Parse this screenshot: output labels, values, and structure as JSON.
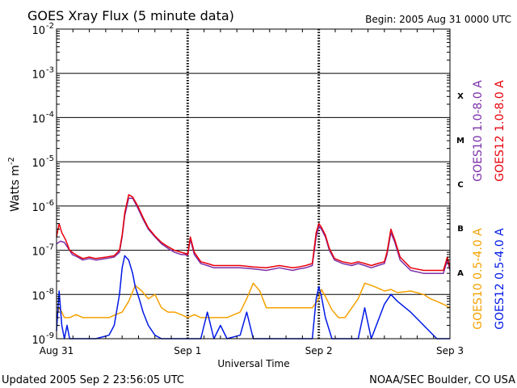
{
  "chart_data": {
    "type": "line",
    "title": "GOES Xray Flux (5 minute data)",
    "begin_label": "Begin:  2005 Aug 31 0000 UTC",
    "xlabel": "Universal Time",
    "ylabel": "Watts m",
    "ylabel_sup": "-2",
    "x_unit": "days since 2005 Aug 31 0000 UTC",
    "xlim": [
      0,
      3
    ],
    "x_ticks": [
      {
        "x": 0,
        "label": "Aug 31"
      },
      {
        "x": 1,
        "label": "Sep 1"
      },
      {
        "x": 2,
        "label": "Sep 2"
      },
      {
        "x": 3,
        "label": "Sep 3"
      }
    ],
    "y_scale": "log",
    "ylim": [
      1e-09,
      0.01
    ],
    "y_ticks": [
      {
        "exp": -9,
        "label": "10",
        "sup": "-9"
      },
      {
        "exp": -8,
        "label": "10",
        "sup": "-8"
      },
      {
        "exp": -7,
        "label": "10",
        "sup": "-7"
      },
      {
        "exp": -6,
        "label": "10",
        "sup": "-6"
      },
      {
        "exp": -5,
        "label": "10",
        "sup": "-5"
      },
      {
        "exp": -4,
        "label": "10",
        "sup": "-4"
      },
      {
        "exp": -3,
        "label": "10",
        "sup": "-3"
      },
      {
        "exp": -2,
        "label": "10",
        "sup": "-2"
      }
    ],
    "grid": true,
    "flare_classes": [
      {
        "label": "A",
        "exp": -7.5
      },
      {
        "label": "B",
        "exp": -6.5
      },
      {
        "label": "C",
        "exp": -5.5
      },
      {
        "label": "M",
        "exp": -4.5
      },
      {
        "label": "X",
        "exp": -3.5
      }
    ],
    "series": [
      {
        "name": "GOES10 1.0-8.0 A",
        "color": "#7b2fa8",
        "x": [
          0,
          0.03,
          0.06,
          0.09,
          0.12,
          0.16,
          0.2,
          0.25,
          0.3,
          0.38,
          0.44,
          0.48,
          0.5,
          0.52,
          0.55,
          0.58,
          0.62,
          0.66,
          0.7,
          0.75,
          0.8,
          0.85,
          0.9,
          0.95,
          0.98,
          1.0,
          1.02,
          1.05,
          1.1,
          1.15,
          1.2,
          1.3,
          1.4,
          1.5,
          1.6,
          1.7,
          1.8,
          1.85,
          1.9,
          1.95,
          1.98,
          2.0,
          2.02,
          2.05,
          2.08,
          2.12,
          2.18,
          2.25,
          2.3,
          2.35,
          2.4,
          2.45,
          2.5,
          2.52,
          2.55,
          2.58,
          2.62,
          2.7,
          2.8,
          2.9,
          2.95,
          2.98,
          3.0
        ],
        "y": [
          1.4e-07,
          1.6e-07,
          1.5e-07,
          1.1e-07,
          8e-08,
          7e-08,
          6e-08,
          6.5e-08,
          6e-08,
          6.5e-08,
          7e-08,
          9e-08,
          2e-07,
          6e-07,
          1.5e-06,
          1.5e-06,
          9e-07,
          5e-07,
          3e-07,
          2e-07,
          1.4e-07,
          1.1e-07,
          9e-08,
          8e-08,
          8e-08,
          7.5e-08,
          1.8e-07,
          8e-08,
          5e-08,
          4.5e-08,
          4e-08,
          4e-08,
          4e-08,
          3.8e-08,
          3.5e-08,
          4e-08,
          3.5e-08,
          3.8e-08,
          4e-08,
          4.5e-08,
          2e-07,
          3.5e-07,
          3e-07,
          2e-07,
          1e-07,
          6e-08,
          5e-08,
          4.5e-08,
          5e-08,
          4.5e-08,
          4e-08,
          4.5e-08,
          5e-08,
          8e-08,
          2.5e-07,
          1.5e-07,
          6e-08,
          3.5e-08,
          3e-08,
          3e-08,
          3e-08,
          6e-08,
          3.5e-08
        ]
      },
      {
        "name": "GOES12 1.0-8.0 A",
        "color": "#e8000b",
        "x": [
          0,
          0.02,
          0.04,
          0.07,
          0.1,
          0.13,
          0.16,
          0.2,
          0.25,
          0.3,
          0.38,
          0.44,
          0.48,
          0.5,
          0.52,
          0.55,
          0.58,
          0.62,
          0.66,
          0.7,
          0.75,
          0.8,
          0.85,
          0.9,
          0.95,
          0.98,
          1.0,
          1.02,
          1.05,
          1.1,
          1.15,
          1.2,
          1.3,
          1.4,
          1.5,
          1.6,
          1.7,
          1.8,
          1.85,
          1.9,
          1.95,
          1.98,
          2.0,
          2.02,
          2.05,
          2.08,
          2.12,
          2.18,
          2.25,
          2.3,
          2.35,
          2.4,
          2.45,
          2.5,
          2.52,
          2.55,
          2.58,
          2.62,
          2.7,
          2.8,
          2.9,
          2.95,
          2.98,
          3.0
        ],
        "y": [
          2e-07,
          4e-07,
          2.5e-07,
          1.7e-07,
          1e-07,
          8.5e-08,
          7.5e-08,
          6.5e-08,
          7e-08,
          6.5e-08,
          7e-08,
          7.5e-08,
          1e-07,
          2.2e-07,
          7e-07,
          1.8e-06,
          1.6e-06,
          1e-06,
          5.5e-07,
          3.2e-07,
          2.1e-07,
          1.5e-07,
          1.2e-07,
          1e-07,
          9e-08,
          8.5e-08,
          8e-08,
          2e-07,
          9e-08,
          5.5e-08,
          5e-08,
          4.5e-08,
          4.5e-08,
          4.5e-08,
          4.2e-08,
          4e-08,
          4.5e-08,
          4e-08,
          4.2e-08,
          4.5e-08,
          5e-08,
          2.5e-07,
          4e-07,
          3.3e-07,
          2.2e-07,
          1.1e-07,
          6.5e-08,
          5.5e-08,
          5e-08,
          5.5e-08,
          5e-08,
          4.5e-08,
          5e-08,
          5.5e-08,
          9e-08,
          3e-07,
          1.7e-07,
          7e-08,
          4e-08,
          3.5e-08,
          3.5e-08,
          3.5e-08,
          7e-08,
          4e-08
        ]
      },
      {
        "name": "GOES10 0.5-4.0 A",
        "color": "#f4a100",
        "x": [
          0,
          0.02,
          0.04,
          0.06,
          0.1,
          0.15,
          0.2,
          0.25,
          0.3,
          0.4,
          0.45,
          0.5,
          0.55,
          0.6,
          0.65,
          0.7,
          0.75,
          0.8,
          0.85,
          0.9,
          0.95,
          1.0,
          1.05,
          1.1,
          1.2,
          1.3,
          1.4,
          1.45,
          1.5,
          1.55,
          1.6,
          1.7,
          1.8,
          1.9,
          1.95,
          2.0,
          2.02,
          2.05,
          2.1,
          2.15,
          2.2,
          2.3,
          2.35,
          2.4,
          2.45,
          2.5,
          2.55,
          2.6,
          2.7,
          2.8,
          2.85,
          2.9,
          2.95,
          3.0
        ],
        "y": [
          3e-09,
          5e-09,
          4e-09,
          3e-09,
          3e-09,
          3.5e-09,
          3e-09,
          3e-09,
          3e-09,
          3e-09,
          3.5e-09,
          4e-09,
          7e-09,
          1.6e-08,
          1.2e-08,
          8e-09,
          1e-08,
          5e-09,
          4e-09,
          4e-09,
          3.5e-09,
          3e-09,
          3.5e-09,
          3e-09,
          3e-09,
          3e-09,
          4e-09,
          8e-09,
          1.8e-08,
          1.2e-08,
          5e-09,
          5e-09,
          5e-09,
          5e-09,
          5e-09,
          8e-09,
          1.3e-08,
          9e-09,
          4.5e-09,
          3e-09,
          3e-09,
          8e-09,
          1.8e-08,
          1.6e-08,
          1.4e-08,
          1.2e-08,
          1.3e-08,
          1.1e-08,
          1.2e-08,
          1e-08,
          8e-09,
          7e-09,
          6e-09,
          5e-09
        ]
      },
      {
        "name": "GOES12 0.5-4.0 A",
        "color": "#0019e6",
        "x": [
          0,
          0.02,
          0.04,
          0.06,
          0.08,
          0.1,
          0.15,
          0.2,
          0.25,
          0.3,
          0.4,
          0.44,
          0.48,
          0.5,
          0.52,
          0.55,
          0.58,
          0.6,
          0.63,
          0.66,
          0.7,
          0.75,
          0.8,
          0.9,
          1.0,
          1.05,
          1.1,
          1.15,
          1.2,
          1.25,
          1.3,
          1.4,
          1.45,
          1.5,
          1.55,
          1.6,
          1.7,
          1.8,
          1.9,
          1.95,
          1.98,
          2.0,
          2.02,
          2.05,
          2.1,
          2.2,
          2.3,
          2.35,
          2.4,
          2.5,
          2.55,
          2.6,
          2.7,
          2.8,
          2.9,
          2.95,
          3.0
        ],
        "y": [
          1.5e-09,
          1.2e-08,
          2e-09,
          1e-09,
          2e-09,
          1e-09,
          1e-09,
          1e-09,
          1e-09,
          1e-09,
          1.2e-09,
          2e-09,
          1e-08,
          4e-08,
          7.5e-08,
          6e-08,
          3e-08,
          1.5e-08,
          8e-09,
          4e-09,
          2e-09,
          1.2e-09,
          1e-09,
          1e-09,
          1e-09,
          1e-09,
          1e-09,
          4e-09,
          1e-09,
          2e-09,
          1e-09,
          1.2e-09,
          4e-09,
          1e-09,
          1e-09,
          1e-09,
          1e-09,
          1e-09,
          1e-09,
          1e-09,
          8e-09,
          1.5e-08,
          9e-09,
          3e-09,
          1e-09,
          1e-09,
          1e-09,
          5e-09,
          1e-09,
          6e-09,
          1e-08,
          7e-09,
          4e-09,
          2e-09,
          1e-09,
          1e-09,
          1e-09
        ]
      }
    ]
  },
  "footer": {
    "updated": "Updated 2005 Sep  2 23:56:05 UTC",
    "credit": "NOAA/SEC Boulder, CO USA"
  }
}
